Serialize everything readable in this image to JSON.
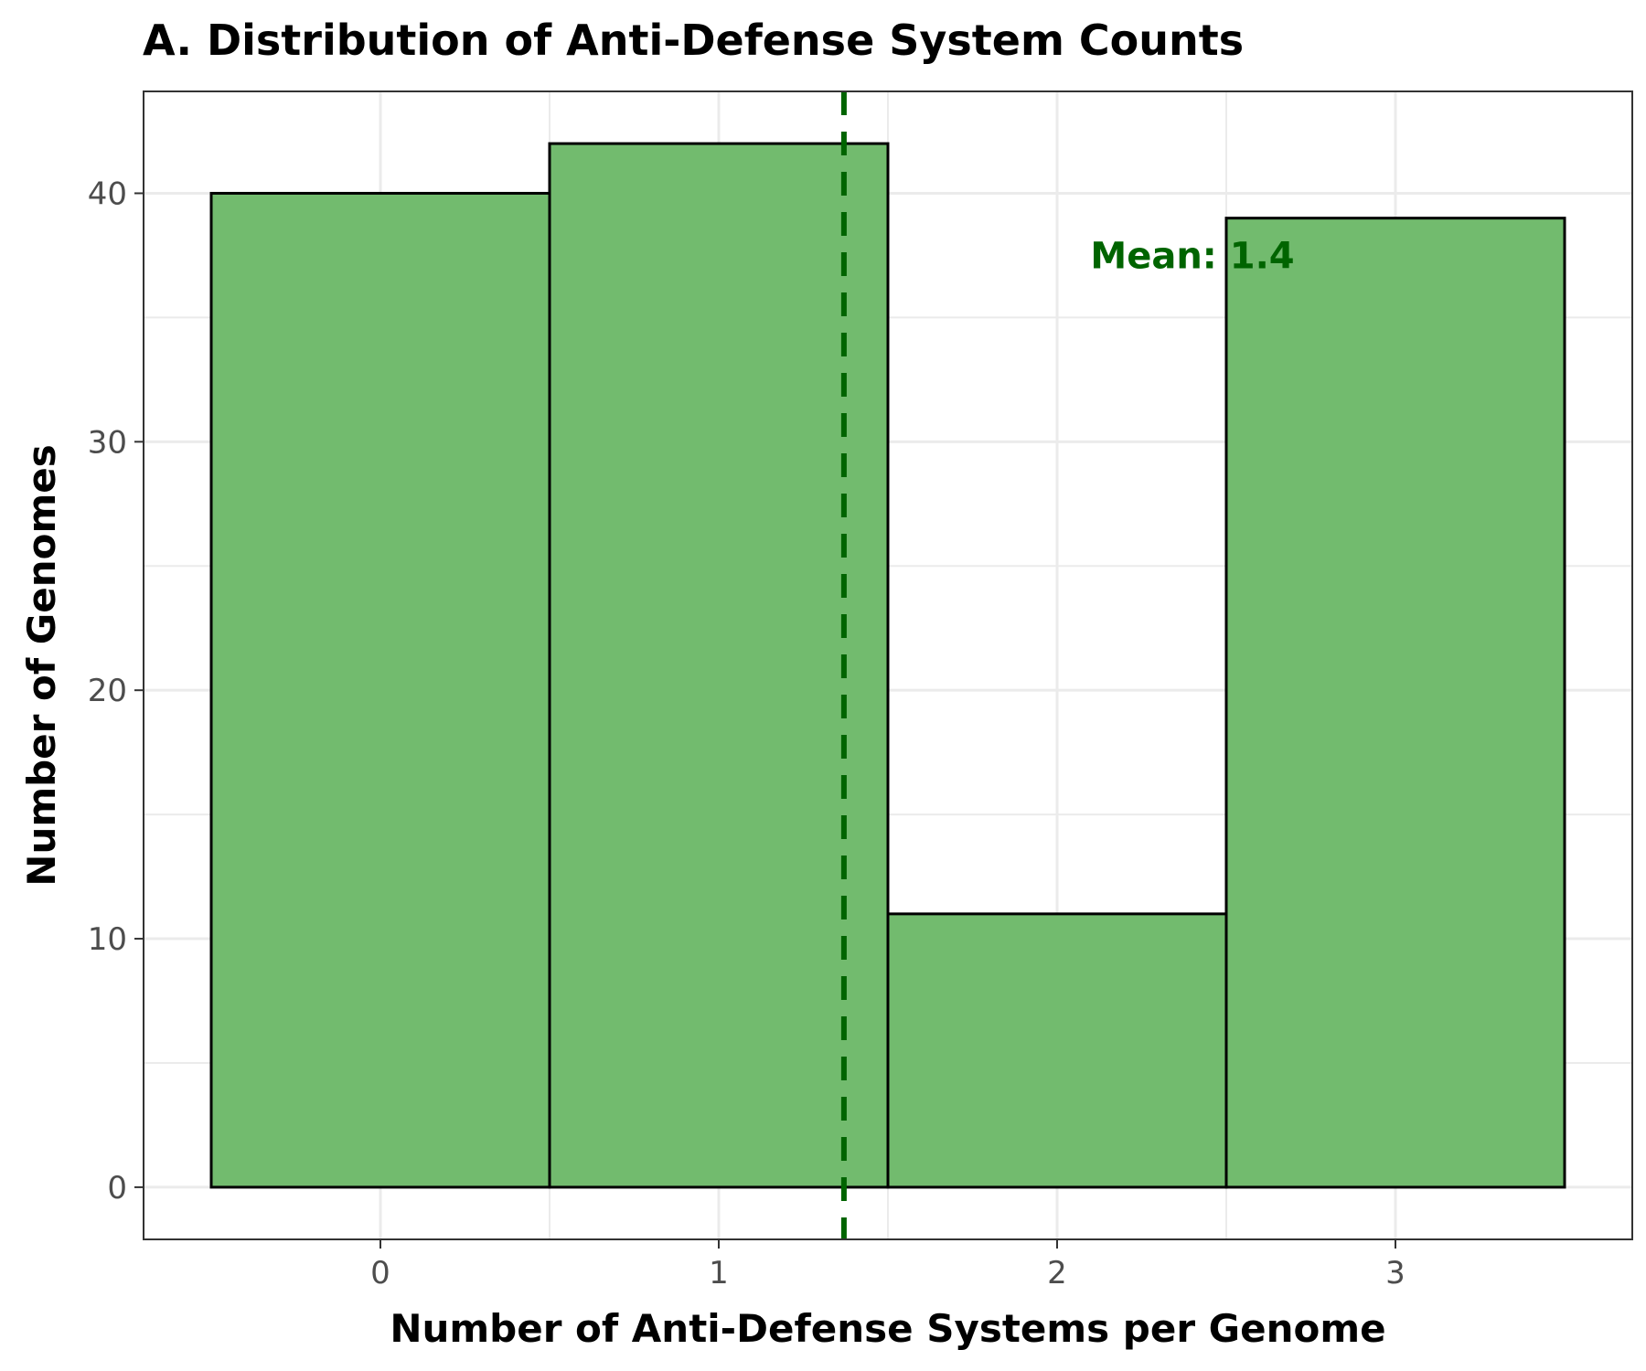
{
  "chart_data": {
    "type": "bar",
    "subtype": "histogram",
    "title": "A. Distribution of Anti-Defense System Counts",
    "xlabel": "Number of Anti-Defense Systems per Genome",
    "ylabel": "Number of Genomes",
    "categories": [
      "0",
      "1",
      "2",
      "3"
    ],
    "x": [
      0,
      1,
      2,
      3
    ],
    "values": [
      40,
      42,
      11,
      39
    ],
    "xlim": [
      -0.7,
      3.7
    ],
    "ylim": [
      -2.1,
      44.1
    ],
    "x_ticks": [
      0,
      1,
      2,
      3
    ],
    "y_ticks": [
      0,
      10,
      20,
      30,
      40
    ],
    "x_tick_labels": [
      "0",
      "1",
      "2",
      "3"
    ],
    "y_tick_labels": [
      "0",
      "10",
      "20",
      "30",
      "40"
    ],
    "grid": true,
    "bar_fill_color": "#72bb6e",
    "bar_edge_color": "#000000",
    "mean_line": {
      "value": 1.37,
      "color": "#006400",
      "style": "dashed"
    },
    "annotation": {
      "text": "Mean: 1.4",
      "x": 2.4,
      "y": 37.5,
      "color": "#006400"
    }
  }
}
